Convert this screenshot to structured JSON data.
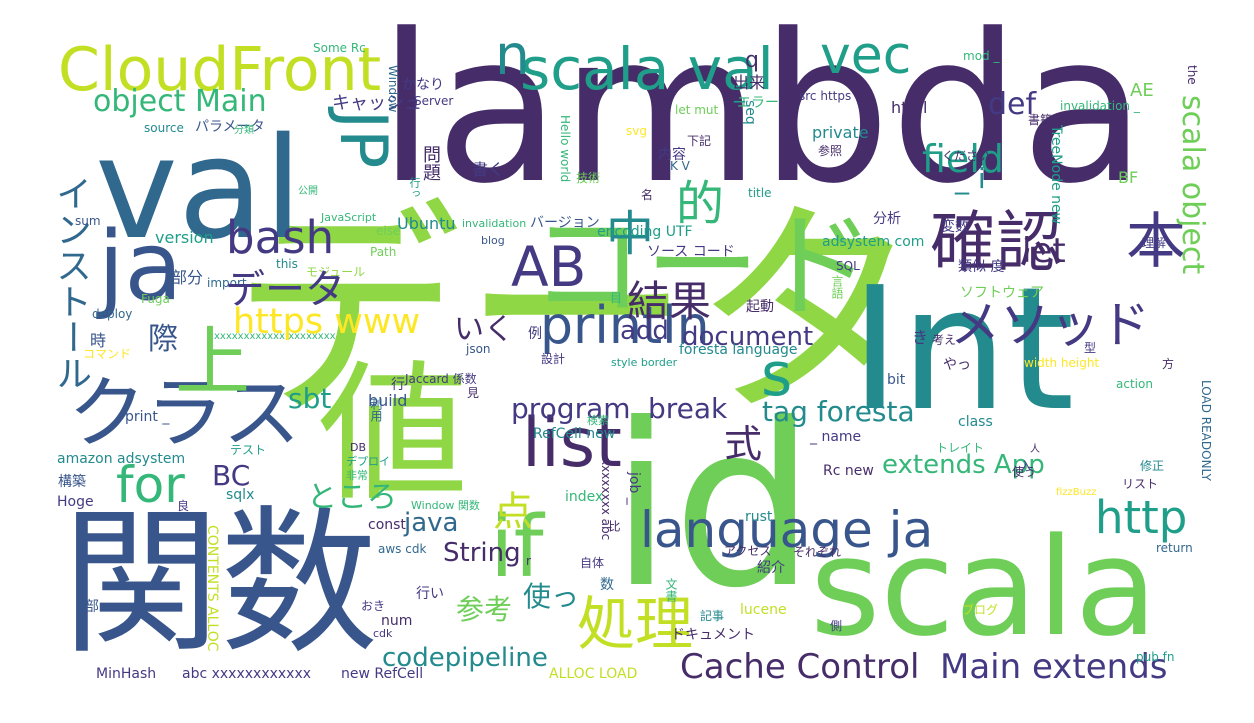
{
  "palette": {
    "purple": "#462d6a",
    "indigo": "#443a83",
    "blue": "#39568c",
    "steel": "#31688e",
    "teal": "#238a8d",
    "green": "#1f9e89",
    "jade": "#35b779",
    "lime": "#6ece58",
    "bright": "#8fd744",
    "yellow": "#c2df23",
    "gold": "#fde725"
  },
  "words": [
    "lambda",
    "データ",
    "id",
    "Int",
    "関数",
    "scala",
    "val",
    "値",
    "ja",
    "CloudFront",
    "コード",
    "クラス",
    "if",
    "list",
    "language ja",
    "scala val",
    "確認",
    "vec",
    "println",
    "上",
    "s",
    "処理",
    "AB",
    "JP",
    "bash",
    "メソッド",
    "本",
    "n",
    "for",
    "http",
    "中",
    "結果",
    "的",
    "field",
    "object Main",
    "https www",
    "let",
    "def",
    "scala object",
    "点",
    "式",
    "Cache Control",
    "Main extends",
    "codepipeline",
    "program",
    "break",
    "tag foresta",
    "extends App",
    "sbt",
    "BC",
    "ところ",
    "document",
    "add",
    "String",
    "java",
    "参考",
    "使っ",
    "インストール",
    "際",
    "いく",
    "例",
    "キャッシュ",
    "パラメータ",
    "Some Rc",
    "src https",
    "mod _",
    "invalidation _",
    "エラー",
    "出来",
    "q",
    "_",
    "html",
    "seq",
    "private",
    "内容",
    "問題",
    "書く",
    "下記",
    "参照",
    "ください",
    "AE",
    "BF",
    "TreeNode new",
    "_ i",
    "分析",
    "変数",
    "adsystem com",
    "ソース コード",
    "Ubuntu",
    "invalidation",
    "バージョン",
    "encoding UTF",
    "blog",
    "JavaScript",
    "else",
    "Path",
    "モジュール",
    "import",
    "this",
    "version",
    "部分",
    "Fuga",
    "deploy",
    "時",
    "コマンド",
    "xxxxxxxxxxxx xxxxxxxx",
    "json",
    "設計",
    "style border",
    "foresta language",
    "類似 度",
    "ソフトウェア",
    "起動",
    "width height",
    "型",
    "考え",
    "LOAD READONLY",
    "action",
    "class",
    "bit",
    "やっ",
    "print _",
    "build",
    "Jaccard 係数",
    "RefCell new",
    "_ name",
    "amazon adsystem",
    "テスト",
    "DB",
    "デプロイ",
    "非常",
    "トレイト",
    "人",
    "Rc new",
    "構築",
    "Hoge",
    "sqlx",
    "Window 関数",
    "index",
    "job _",
    "const",
    "fizzBuzz",
    "使う",
    "リスト",
    "rust",
    "アクセス",
    "自体",
    "return",
    "aws cdk",
    "紹介",
    "それぞれ",
    "xxxxxxxx abc",
    "ブログ",
    "行い",
    "数",
    "lucene",
    "側",
    "ドキュメント",
    "num",
    "cdk",
    "pub fn",
    "MinHash",
    "abc xxxxxxxxxxxx",
    "new RefCell",
    "ALLOC LOAD",
    "CONTENTS ALLOC",
    "Hello world",
    "svg",
    "let mut",
    "K V",
    "title",
    "Window",
    "Server",
    "かなり",
    "source",
    "分類",
    "公開",
    "sum",
    "SQL",
    "良",
    "技術",
    "名",
    "行",
    "利用",
    "見",
    "理解",
    "書籍",
    "the",
    "方",
    "文書",
    "目",
    "検索",
    "r",
    "t",
    "おき",
    "部",
    "き",
    "入",
    "比",
    "行っ",
    "言語",
    "修正",
    "記事",
    "データ"
  ]
}
